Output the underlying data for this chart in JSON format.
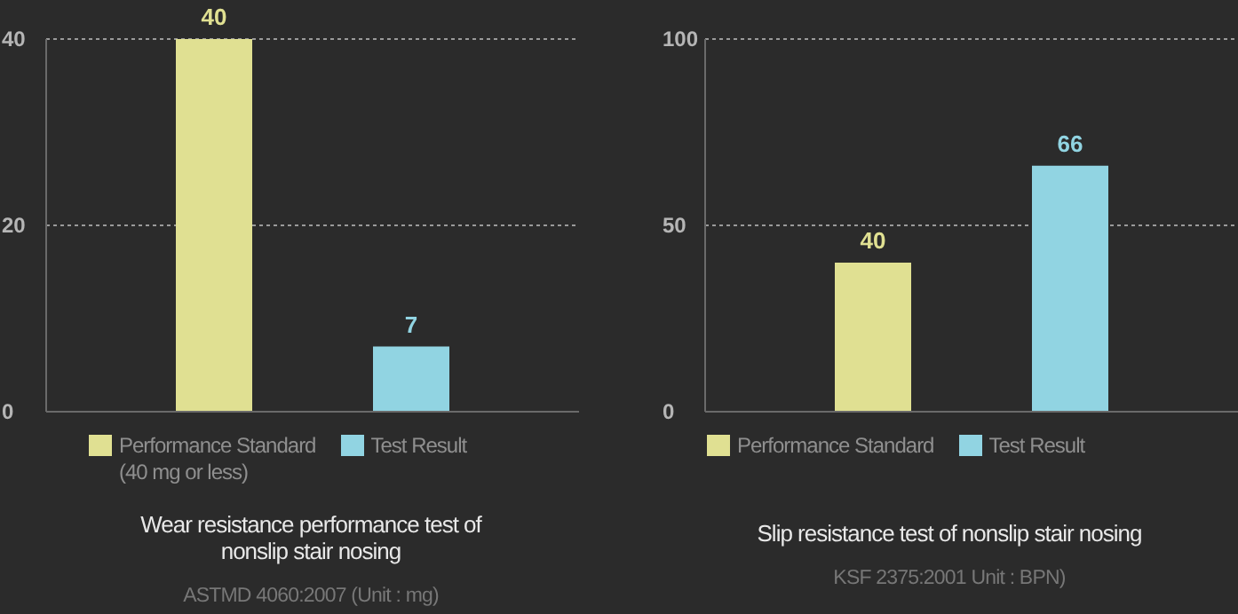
{
  "chart_data": [
    {
      "type": "bar",
      "title": "Wear resistance performance test of\nnonslip stair nosing",
      "subtitle": "ASTMD 4060:2007 (Unit : mg)",
      "categories": [
        null
      ],
      "series": [
        {
          "name": "Performance Standard\n(40 mg or less)",
          "color": "#e0e092",
          "values": [
            40
          ]
        },
        {
          "name": "Test Result",
          "color": "#91d4e2",
          "values": [
            7
          ]
        }
      ],
      "ylim": [
        0,
        40
      ],
      "yticks": [
        0,
        20,
        40
      ],
      "grid": "y",
      "legend": "bottom",
      "data_labels": true
    },
    {
      "type": "bar",
      "title": "Slip resistance test of nonslip stair nosing",
      "subtitle": "KSF 2375:2001 Unit : BPN)",
      "categories": [
        null
      ],
      "series": [
        {
          "name": "Performance Standard",
          "color": "#e0e092",
          "values": [
            40
          ]
        },
        {
          "name": "Test Result",
          "color": "#91d4e2",
          "values": [
            66
          ]
        }
      ],
      "ylim": [
        0,
        100
      ],
      "yticks": [
        0,
        50,
        100
      ],
      "grid": "y",
      "legend": "bottom",
      "data_labels": true
    }
  ]
}
